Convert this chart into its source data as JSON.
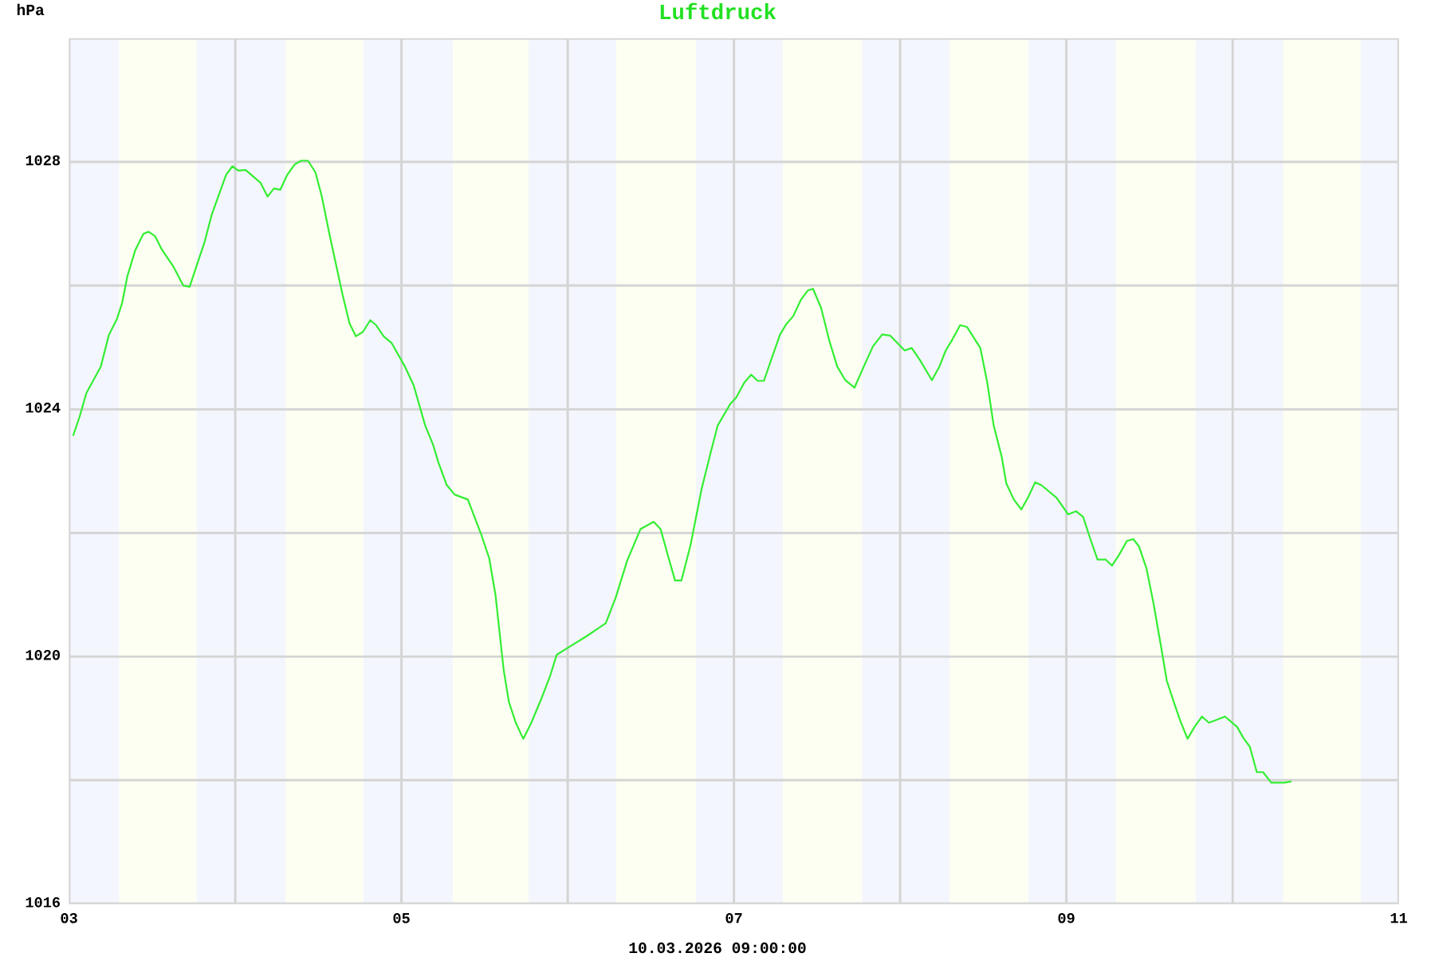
{
  "chart_data": {
    "type": "line",
    "title": "Luftdruck",
    "ylabel": "hPa",
    "annotations": [
      "10.03.2026 09:00:00"
    ],
    "x": [
      "2026-03-03T00:35",
      "2026-03-03T01:30",
      "2026-03-03T02:30",
      "2026-03-03T04:35",
      "2026-03-03T05:45",
      "2026-03-03T06:55",
      "2026-03-03T07:40",
      "2026-03-03T08:25",
      "2026-03-03T09:35",
      "2026-03-03T10:45",
      "2026-03-03T11:30",
      "2026-03-03T12:25",
      "2026-03-03T13:25",
      "2026-03-03T15:00",
      "2026-03-03T16:30",
      "2026-03-03T17:25",
      "2026-03-03T18:25",
      "2026-03-03T19:35",
      "2026-03-03T20:35",
      "2026-03-03T22:40",
      "2026-03-03T23:35",
      "2026-03-04T00:25",
      "2026-03-04T01:30",
      "2026-03-04T03:40",
      "2026-03-04T04:40",
      "2026-03-04T05:35",
      "2026-03-04T06:30",
      "2026-03-04T07:30",
      "2026-03-04T08:35",
      "2026-03-04T09:30",
      "2026-03-04T10:30",
      "2026-03-04T11:35",
      "2026-03-04T12:30",
      "2026-03-04T13:35",
      "2026-03-04T15:30",
      "2026-03-04T16:30",
      "2026-03-04T17:25",
      "2026-03-04T18:25",
      "2026-03-04T19:30",
      "2026-03-04T20:20",
      "2026-03-04T21:25",
      "2026-03-04T22:35",
      "2026-03-05T00:30",
      "2026-03-05T01:45",
      "2026-03-05T03:25",
      "2026-03-05T04:35",
      "2026-03-05T05:20",
      "2026-03-05T06:30",
      "2026-03-05T07:40",
      "2026-03-05T09:35",
      "2026-03-05T11:30",
      "2026-03-05T12:40",
      "2026-03-05T13:35",
      "2026-03-05T14:10",
      "2026-03-05T14:45",
      "2026-03-05T15:30",
      "2026-03-05T16:30",
      "2026-03-05T17:35",
      "2026-03-05T18:45",
      "2026-03-05T20:10",
      "2026-03-05T21:30",
      "2026-03-05T22:25",
      "2026-03-06T00:25",
      "2026-03-06T02:35",
      "2026-03-06T04:35",
      "2026-03-06T05:30",
      "2026-03-06T06:55",
      "2026-03-06T08:35",
      "2026-03-06T10:30",
      "2026-03-06T12:25",
      "2026-03-06T13:25",
      "2026-03-06T14:35",
      "2026-03-06T15:30",
      "2026-03-06T16:25",
      "2026-03-06T17:45",
      "2026-03-06T19:20",
      "2026-03-06T20:40",
      "2026-03-06T21:40",
      "2026-03-06T23:30",
      "2026-03-07T00:20",
      "2026-03-07T01:30",
      "2026-03-07T02:30",
      "2026-03-07T03:25",
      "2026-03-07T04:20",
      "2026-03-07T05:30",
      "2026-03-07T06:40",
      "2026-03-07T07:35",
      "2026-03-07T08:35",
      "2026-03-07T09:40",
      "2026-03-07T10:40",
      "2026-03-07T11:25",
      "2026-03-07T12:35",
      "2026-03-07T13:45",
      "2026-03-07T14:55",
      "2026-03-07T16:05",
      "2026-03-07T17:25",
      "2026-03-07T18:45",
      "2026-03-07T20:05",
      "2026-03-07T21:25",
      "2026-03-07T22:35",
      "2026-03-08T00:40",
      "2026-03-08T01:40",
      "2026-03-08T02:50",
      "2026-03-08T04:35",
      "2026-03-08T05:40",
      "2026-03-08T06:35",
      "2026-03-08T07:30",
      "2026-03-08T08:40",
      "2026-03-08T09:40",
      "2026-03-08T11:35",
      "2026-03-08T12:35",
      "2026-03-08T13:30",
      "2026-03-08T14:40",
      "2026-03-08T15:20",
      "2026-03-08T16:25",
      "2026-03-08T17:30",
      "2026-03-08T18:30",
      "2026-03-08T19:30",
      "2026-03-08T20:25",
      "2026-03-08T22:35",
      "2026-03-09T00:15",
      "2026-03-09T01:25",
      "2026-03-09T02:25",
      "2026-03-09T03:30",
      "2026-03-09T04:30",
      "2026-03-09T05:40",
      "2026-03-09T06:35",
      "2026-03-09T07:35",
      "2026-03-09T08:45",
      "2026-03-09T09:40",
      "2026-03-09T10:30",
      "2026-03-09T11:35",
      "2026-03-09T12:35",
      "2026-03-09T13:35",
      "2026-03-09T14:30",
      "2026-03-09T15:30",
      "2026-03-09T16:25",
      "2026-03-09T17:30",
      "2026-03-09T18:30",
      "2026-03-09T19:35",
      "2026-03-09T20:35",
      "2026-03-09T22:55",
      "2026-03-10T00:40",
      "2026-03-10T01:35",
      "2026-03-10T02:30",
      "2026-03-10T03:30",
      "2026-03-10T04:25",
      "2026-03-10T05:35",
      "2026-03-10T07:30",
      "2026-03-10T08:30"
    ],
    "series": [
      {
        "color": "#33ee33",
        "values": [
          1023.57,
          1023.87,
          1024.26,
          1024.69,
          1025.2,
          1025.46,
          1025.72,
          1026.15,
          1026.58,
          1026.84,
          1026.87,
          1026.8,
          1026.58,
          1026.32,
          1026.0,
          1025.98,
          1026.32,
          1026.71,
          1027.14,
          1027.79,
          1027.93,
          1027.86,
          1027.87,
          1027.66,
          1027.44,
          1027.57,
          1027.55,
          1027.79,
          1027.96,
          1028.02,
          1028.02,
          1027.83,
          1027.44,
          1026.84,
          1025.85,
          1025.39,
          1025.18,
          1025.25,
          1025.44,
          1025.36,
          1025.18,
          1025.07,
          1024.69,
          1024.39,
          1023.74,
          1023.42,
          1023.14,
          1022.78,
          1022.62,
          1022.54,
          1021.98,
          1021.59,
          1020.99,
          1020.39,
          1019.79,
          1019.27,
          1018.93,
          1018.67,
          1018.93,
          1019.31,
          1019.7,
          1020.03,
          1020.17,
          1020.32,
          1020.47,
          1020.54,
          1020.95,
          1021.55,
          1022.06,
          1022.18,
          1022.06,
          1021.59,
          1021.23,
          1021.23,
          1021.81,
          1022.71,
          1023.31,
          1023.74,
          1024.09,
          1024.19,
          1024.43,
          1024.56,
          1024.46,
          1024.46,
          1024.84,
          1025.21,
          1025.38,
          1025.51,
          1025.77,
          1025.92,
          1025.95,
          1025.64,
          1025.12,
          1024.69,
          1024.47,
          1024.35,
          1024.69,
          1025.02,
          1025.21,
          1025.19,
          1024.95,
          1024.99,
          1024.8,
          1024.47,
          1024.69,
          1024.95,
          1025.12,
          1025.36,
          1025.33,
          1024.99,
          1024.43,
          1023.74,
          1023.23,
          1022.8,
          1022.54,
          1022.38,
          1022.58,
          1022.82,
          1022.77,
          1022.57,
          1022.3,
          1022.35,
          1022.26,
          1021.89,
          1021.57,
          1021.57,
          1021.47,
          1021.64,
          1021.87,
          1021.9,
          1021.78,
          1021.42,
          1020.86,
          1020.22,
          1019.61,
          1019.27,
          1018.97,
          1018.67,
          1018.86,
          1019.03,
          1018.93,
          1019.03,
          1018.86,
          1018.68,
          1018.54,
          1018.13,
          1018.13,
          1017.96,
          1017.96,
          1017.98
        ]
      }
    ],
    "xlim": [
      "2026-03-03T00:00",
      "2026-03-11T00:00"
    ],
    "xticks": [
      {
        "value": "2026-03-03",
        "label": "03"
      },
      {
        "value": "2026-03-04",
        "label": null
      },
      {
        "value": "2026-03-05",
        "label": "05"
      },
      {
        "value": "2026-03-06",
        "label": null
      },
      {
        "value": "2026-03-07",
        "label": "07"
      },
      {
        "value": "2026-03-08",
        "label": null
      },
      {
        "value": "2026-03-09",
        "label": "09"
      },
      {
        "value": "2026-03-10",
        "label": null
      },
      {
        "value": "2026-03-11",
        "label": "11"
      }
    ],
    "ylim": [
      1016,
      1030
    ],
    "yticks": [
      1016,
      {
        "value": 1018,
        "label": null
      },
      1020,
      {
        "value": 1022,
        "label": null
      },
      1024,
      {
        "value": 1026,
        "label": null
      },
      1028
    ],
    "grid": true,
    "bands": [
      {
        "axis": "x",
        "from": "2026-03-03T00:00",
        "to": "2026-03-03T07:15",
        "color": "#f4f6fd"
      },
      {
        "axis": "x",
        "from": "2026-03-03T07:15",
        "to": "2026-03-03T18:25",
        "color": "#fdfff2"
      },
      {
        "axis": "x",
        "from": "2026-03-03T18:25",
        "to": "2026-03-04T07:15",
        "color": "#f4f6fd"
      },
      {
        "axis": "x",
        "from": "2026-03-04T07:15",
        "to": "2026-03-04T18:30",
        "color": "#fdfff2"
      },
      {
        "axis": "x",
        "from": "2026-03-04T18:30",
        "to": "2026-03-05T07:25",
        "color": "#f4f6fd"
      },
      {
        "axis": "x",
        "from": "2026-03-05T07:25",
        "to": "2026-03-05T18:20",
        "color": "#fdfff2"
      },
      {
        "axis": "x",
        "from": "2026-03-05T18:20",
        "to": "2026-03-06T07:00",
        "color": "#f4f6fd"
      },
      {
        "axis": "x",
        "from": "2026-03-06T07:00",
        "to": "2026-03-06T18:30",
        "color": "#fdfff2"
      },
      {
        "axis": "x",
        "from": "2026-03-06T18:30",
        "to": "2026-03-07T07:05",
        "color": "#f4f6fd"
      },
      {
        "axis": "x",
        "from": "2026-03-07T07:05",
        "to": "2026-03-07T18:30",
        "color": "#fdfff2"
      },
      {
        "axis": "x",
        "from": "2026-03-07T18:30",
        "to": "2026-03-08T07:10",
        "color": "#f4f6fd"
      },
      {
        "axis": "x",
        "from": "2026-03-08T07:10",
        "to": "2026-03-08T18:30",
        "color": "#fdfff2"
      },
      {
        "axis": "x",
        "from": "2026-03-08T18:30",
        "to": "2026-03-09T07:10",
        "color": "#f4f6fd"
      },
      {
        "axis": "x",
        "from": "2026-03-09T07:10",
        "to": "2026-03-09T18:40",
        "color": "#fdfff2"
      },
      {
        "axis": "x",
        "from": "2026-03-09T18:40",
        "to": "2026-03-10T07:20",
        "color": "#f4f6fd"
      },
      {
        "axis": "x",
        "from": "2026-03-10T07:20",
        "to": "2026-03-10T18:30",
        "color": "#fdfff2"
      },
      {
        "axis": "x",
        "from": "2026-03-10T18:30",
        "to": "2026-03-11T00:00",
        "color": "#f4f6fd"
      }
    ]
  }
}
